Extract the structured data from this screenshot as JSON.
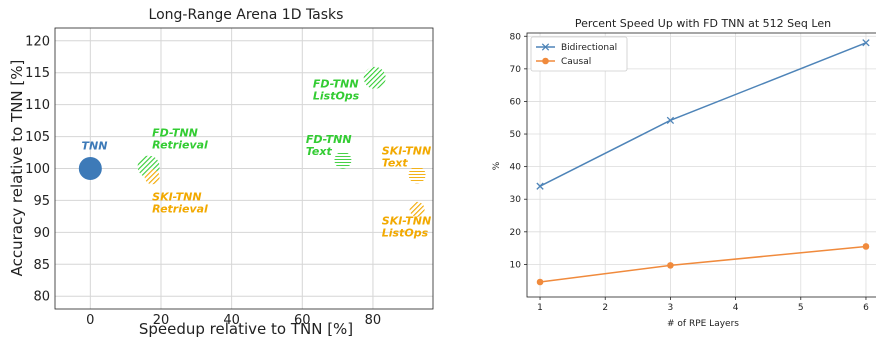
{
  "chart_data": [
    {
      "type": "scatter",
      "title": "Long-Range Arena 1D Tasks",
      "xlabel": "Speedup relative to TNN [%]",
      "ylabel": "Accuracy relative to TNN [%]",
      "xlim": [
        -10,
        97
      ],
      "ylim": [
        78,
        122
      ],
      "x_ticks": [
        0,
        20,
        40,
        60,
        80
      ],
      "y_ticks": [
        80,
        85,
        90,
        95,
        100,
        105,
        110,
        115,
        120
      ],
      "grid": true,
      "colors": {
        "tnn": "#3d7ab8",
        "fd": "#33cc33",
        "ski": "#f2a900"
      },
      "points": [
        {
          "label": "TNN",
          "x": 0,
          "y": 100,
          "family": "tnn",
          "fill": "solid",
          "size": "large"
        },
        {
          "label": "FD-TNN Retrieval",
          "x": 16.5,
          "y": 100.3,
          "family": "fd",
          "fill": "hatched",
          "size": "large"
        },
        {
          "label": "SKI-TNN Retrieval",
          "x": 17.5,
          "y": 98.7,
          "family": "ski",
          "fill": "hatched",
          "size": "small"
        },
        {
          "label": "FD-TNN Text",
          "x": 71.5,
          "y": 101.3,
          "family": "fd",
          "fill": "light-hatched",
          "size": "medium"
        },
        {
          "label": "FD-TNN ListOps",
          "x": 80.5,
          "y": 114.2,
          "family": "fd",
          "fill": "hatched",
          "size": "large"
        },
        {
          "label": "SKI-TNN Text",
          "x": 92.5,
          "y": 99,
          "family": "ski",
          "fill": "light-hatched",
          "size": "medium"
        },
        {
          "label": "SKI-TNN ListOps",
          "x": 92.5,
          "y": 93.6,
          "family": "ski",
          "fill": "hatched",
          "size": "small"
        }
      ],
      "annotations": [
        {
          "lines": [
            "TNN"
          ],
          "x": -2.5,
          "y": 103,
          "family": "tnn"
        },
        {
          "lines": [
            "FD-TNN",
            "Retrieval"
          ],
          "x": 17.5,
          "y": 105,
          "family": "fd"
        },
        {
          "lines": [
            "SKI-TNN",
            "Retrieval"
          ],
          "x": 17.5,
          "y": 95,
          "family": "ski"
        },
        {
          "lines": [
            "FD-TNN",
            "Text"
          ],
          "x": 61,
          "y": 104,
          "family": "fd"
        },
        {
          "lines": [
            "FD-TNN",
            "ListOps"
          ],
          "x": 63,
          "y": 112.7,
          "family": "fd"
        },
        {
          "lines": [
            "SKI-TNN",
            "Text"
          ],
          "x": 82.5,
          "y": 102.2,
          "family": "ski"
        },
        {
          "lines": [
            "SKI-TNN",
            "ListOps"
          ],
          "x": 82.5,
          "y": 91.2,
          "family": "ski"
        }
      ]
    },
    {
      "type": "line",
      "title": "Percent Speed Up with FD TNN at 512 Seq Len",
      "xlabel": "# of RPE Layers",
      "ylabel": "%",
      "xlim": [
        0.8,
        6.2
      ],
      "ylim": [
        0,
        81
      ],
      "x_ticks": [
        1,
        2,
        3,
        4,
        5,
        6
      ],
      "y_ticks": [
        10,
        20,
        30,
        40,
        50,
        60,
        70,
        80
      ],
      "grid": true,
      "legend": "top-left",
      "series": [
        {
          "name": "Bidirectional",
          "marker": "x",
          "color": "#4e84b8",
          "x": [
            1,
            3,
            6
          ],
          "y": [
            34,
            54.2,
            78
          ]
        },
        {
          "name": "Causal",
          "marker": "o",
          "color": "#f08a3c",
          "x": [
            1,
            3,
            6
          ],
          "y": [
            4.6,
            9.7,
            15.5
          ]
        }
      ]
    }
  ]
}
